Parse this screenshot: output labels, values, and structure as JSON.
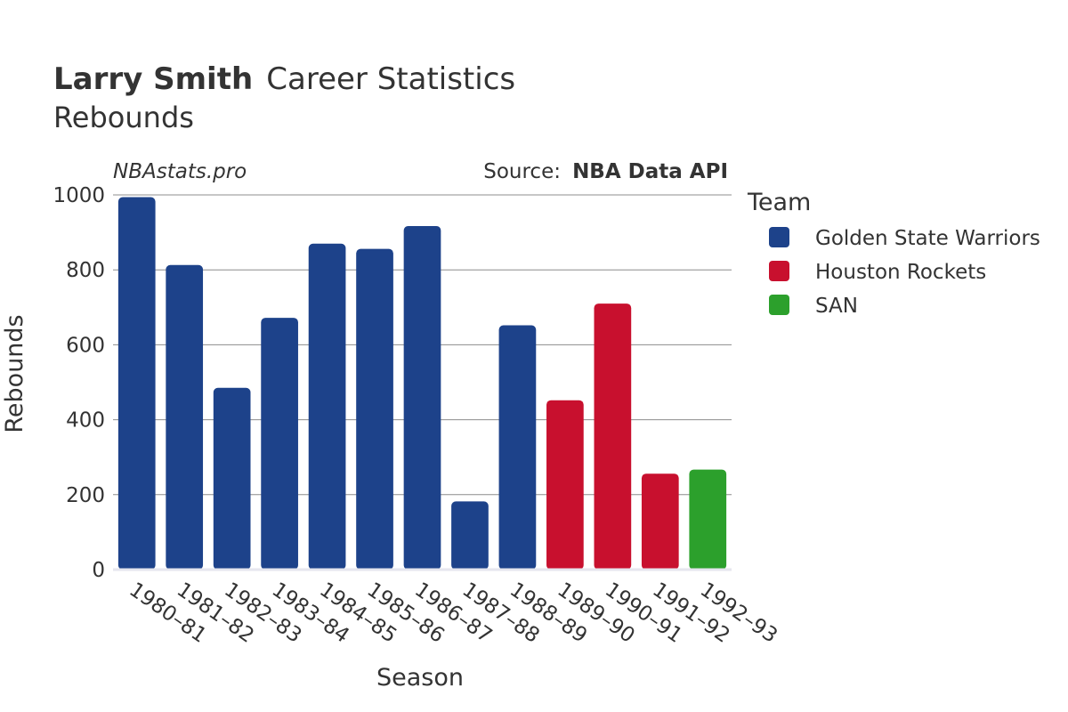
{
  "header": {
    "title_bold": "Larry Smith",
    "title_rest": "Career Statistics",
    "subtitle": "Rebounds"
  },
  "annotations": {
    "site": "NBAstats.pro",
    "source_label": "Source:",
    "source_value": "NBA Data API"
  },
  "legend": {
    "title": "Team",
    "items": [
      {
        "label": "Golden State Warriors",
        "color": "#1d428a"
      },
      {
        "label": "Houston Rockets",
        "color": "#c8102e"
      },
      {
        "label": "SAN",
        "color": "#2ca02c"
      }
    ]
  },
  "chart_data": {
    "type": "bar",
    "title": "Larry Smith Career Statistics",
    "subtitle": "Rebounds",
    "xlabel": "Season",
    "ylabel": "Rebounds",
    "ylim": [
      0,
      1000
    ],
    "yticks": [
      0,
      200,
      400,
      600,
      800,
      1000
    ],
    "grid": true,
    "legend_position": "right",
    "categories": [
      "1980–81",
      "1981–82",
      "1982–83",
      "1983–84",
      "1984–85",
      "1985–86",
      "1986–87",
      "1987–88",
      "1988–89",
      "1989–90",
      "1990–91",
      "1991–92",
      "1992–93"
    ],
    "values": [
      994,
      813,
      485,
      672,
      870,
      856,
      917,
      182,
      652,
      452,
      710,
      256,
      267
    ],
    "teams": [
      "Golden State Warriors",
      "Golden State Warriors",
      "Golden State Warriors",
      "Golden State Warriors",
      "Golden State Warriors",
      "Golden State Warriors",
      "Golden State Warriors",
      "Golden State Warriors",
      "Golden State Warriors",
      "Houston Rockets",
      "Houston Rockets",
      "Houston Rockets",
      "SAN"
    ],
    "series": [
      {
        "name": "Golden State Warriors",
        "color": "#1d428a",
        "values": [
          994,
          813,
          485,
          672,
          870,
          856,
          917,
          182,
          652,
          null,
          null,
          null,
          null
        ]
      },
      {
        "name": "Houston Rockets",
        "color": "#c8102e",
        "values": [
          null,
          null,
          null,
          null,
          null,
          null,
          null,
          null,
          null,
          452,
          710,
          256,
          null
        ]
      },
      {
        "name": "SAN",
        "color": "#2ca02c",
        "values": [
          null,
          null,
          null,
          null,
          null,
          null,
          null,
          null,
          null,
          null,
          null,
          null,
          267
        ]
      }
    ]
  }
}
